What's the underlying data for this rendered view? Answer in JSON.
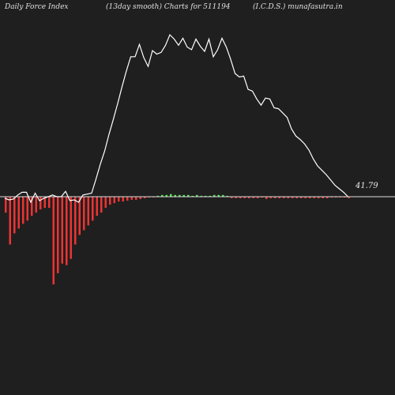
{
  "header": {
    "left": "Daily Force  Index",
    "center": "(13day smooth) Charts for 511194",
    "right": "(I.C.D.S.) munafasutra.in"
  },
  "chart_data": {
    "type": "bar",
    "title": "Daily Force Index (13day smooth)",
    "last_value_label": "41.79",
    "colors": {
      "background": "#1f1f1f",
      "positive": "#55ee55",
      "negative": "#ee3333",
      "line": "#ffffff",
      "zero_line": "#dcdcdc"
    },
    "ylim": [
      -115,
      210
    ],
    "bars": [
      -20,
      -60,
      -46,
      -40,
      -34,
      -30,
      -24,
      -20,
      -16,
      -14,
      -14,
      -110,
      -96,
      -84,
      -86,
      -78,
      -60,
      -48,
      -42,
      -36,
      -30,
      -24,
      -20,
      -14,
      -10,
      -8,
      -6,
      -6,
      -5,
      -4,
      -4,
      -3,
      -2,
      -1,
      -1,
      1,
      2,
      2,
      3,
      2,
      2,
      2,
      2,
      1,
      2,
      1,
      1,
      1,
      2,
      2,
      2,
      1,
      -2,
      -2,
      -2,
      -2,
      -2,
      -2,
      -2,
      -1,
      -3,
      -2,
      -2,
      -2,
      -2,
      -2,
      -2,
      -2,
      -2,
      -2,
      -2,
      -2,
      -2,
      -2,
      -2,
      -1,
      -1,
      -1,
      -1,
      -2
    ],
    "line": [
      -2,
      -4,
      -3,
      2,
      5,
      5,
      -7,
      4,
      -5,
      -2,
      0,
      2,
      0,
      0,
      6,
      -5,
      -4,
      -7,
      2,
      3,
      4,
      20,
      37,
      52,
      71,
      88,
      106,
      125,
      143,
      159,
      159,
      173,
      158,
      148,
      166,
      162,
      164,
      172,
      184,
      179,
      172,
      180,
      170,
      167,
      179,
      171,
      165,
      179,
      159,
      167,
      180,
      170,
      156,
      140,
      136,
      137,
      122,
      120,
      111,
      104,
      112,
      111,
      101,
      100,
      95,
      90,
      77,
      69,
      65,
      60,
      53,
      43,
      35,
      30,
      25,
      19,
      13,
      9,
      5,
      0
    ]
  }
}
